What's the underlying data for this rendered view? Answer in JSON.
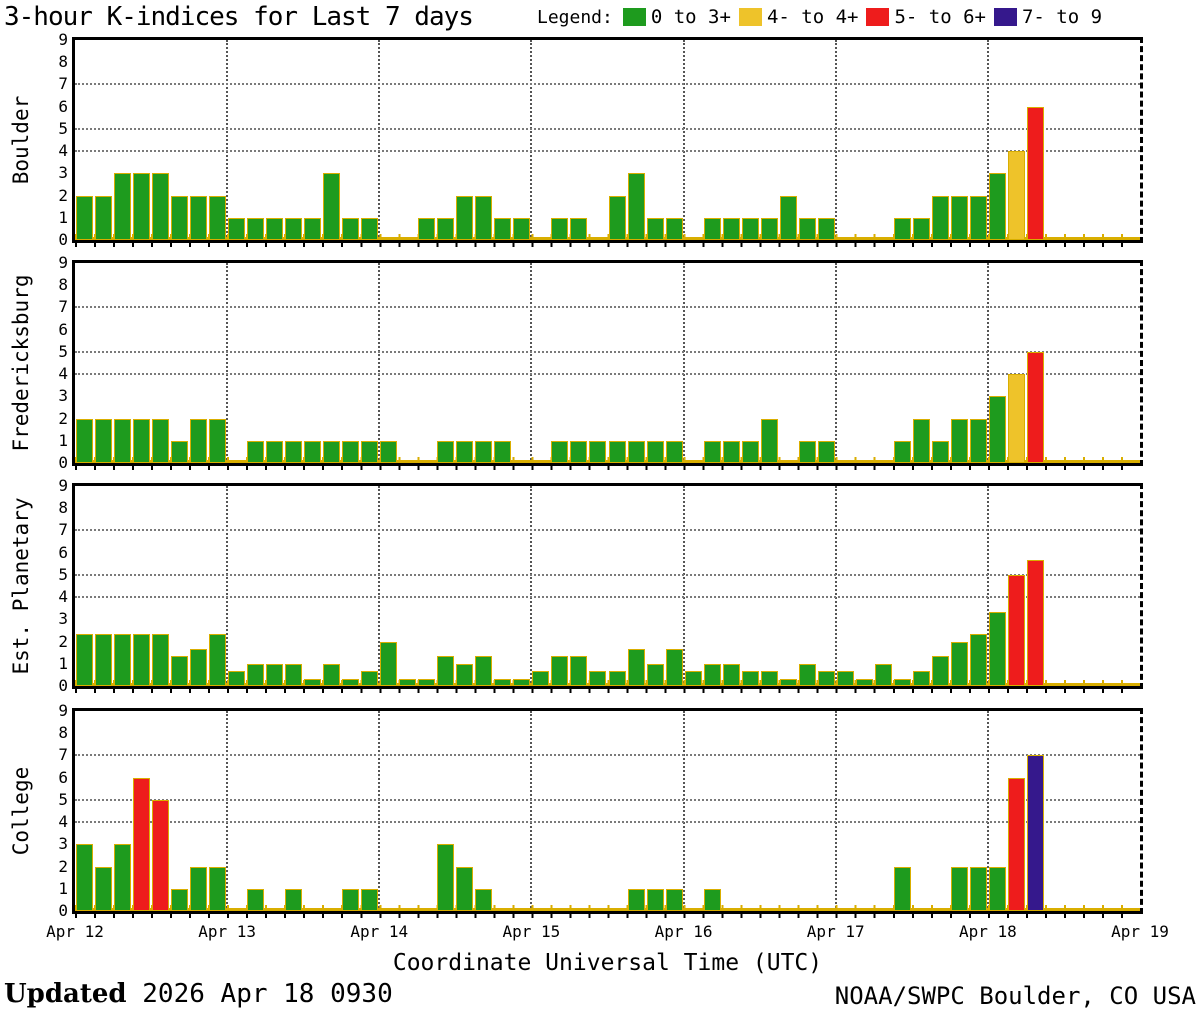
{
  "title": "3-hour K-indices for Last 7 days",
  "legend": {
    "label": "Legend:",
    "items": [
      {
        "label": "0 to 3+",
        "color_key": "green"
      },
      {
        "label": "4- to 4+",
        "color_key": "yellow"
      },
      {
        "label": "5- to 6+",
        "color_key": "red"
      },
      {
        "label": "7- to 9",
        "color_key": "purple"
      }
    ]
  },
  "colors": {
    "green": "#1e9b1e",
    "yellow": "#eec32a",
    "red": "#ee1c1c",
    "purple": "#35188c",
    "bar_outline": "#d9ae00",
    "grid_horizontal": "#7a7a7a",
    "grid_vertical": "#555555",
    "axis": "#000000",
    "background": "#ffffff"
  },
  "x_axis": {
    "title": "Coordinate Universal Time (UTC)",
    "tick_labels": [
      "Apr 12",
      "Apr 13",
      "Apr 14",
      "Apr 15",
      "Apr 16",
      "Apr 17",
      "Apr 18",
      "Apr 19"
    ]
  },
  "y_axis": {
    "min": 0,
    "max": 9,
    "ticks": [
      0,
      1,
      2,
      3,
      4,
      5,
      6,
      7,
      8,
      9
    ],
    "dotted_levels": [
      4,
      5,
      7
    ]
  },
  "footer": {
    "updated_label": "Updated",
    "updated_value": " 2026 Apr 18 0930",
    "credit": "NOAA/SWPC Boulder, CO USA"
  },
  "chart_data": {
    "type": "bar",
    "title": "3-hour K-indices for Last 7 days",
    "bars_per_day": 8,
    "bar_interval_hours": 3,
    "days": [
      "Apr 12",
      "Apr 13",
      "Apr 14",
      "Apr 15",
      "Apr 16",
      "Apr 17",
      "Apr 18"
    ],
    "ylim": [
      0,
      9
    ],
    "color_rule": [
      {
        "max": 3.5,
        "color_key": "green"
      },
      {
        "max": 4.5,
        "color_key": "yellow"
      },
      {
        "max": 6.5,
        "color_key": "red"
      },
      {
        "max": 9.0,
        "color_key": "purple"
      }
    ],
    "panels": [
      {
        "station": "Boulder",
        "k_values": [
          [
            2,
            2,
            3,
            3,
            3,
            2,
            2,
            2
          ],
          [
            1,
            1,
            1,
            1,
            1,
            3,
            1,
            1
          ],
          [
            0,
            0,
            1,
            1,
            2,
            2,
            1,
            1
          ],
          [
            0,
            1,
            1,
            0,
            2,
            3,
            1,
            1
          ],
          [
            0,
            1,
            1,
            1,
            1,
            2,
            1,
            1
          ],
          [
            0,
            0,
            0,
            1,
            1,
            2,
            2,
            2
          ],
          [
            3,
            4,
            6,
            null,
            null,
            null,
            null,
            null
          ]
        ]
      },
      {
        "station": "Fredericksburg",
        "k_values": [
          [
            2,
            2,
            2,
            2,
            2,
            1,
            2,
            2
          ],
          [
            0,
            1,
            1,
            1,
            1,
            1,
            1,
            1
          ],
          [
            1,
            0,
            0,
            1,
            1,
            1,
            1,
            0
          ],
          [
            0,
            1,
            1,
            1,
            1,
            1,
            1,
            1
          ],
          [
            0,
            1,
            1,
            1,
            2,
            0,
            1,
            1
          ],
          [
            0,
            0,
            0,
            1,
            2,
            1,
            2,
            2
          ],
          [
            3,
            4,
            5,
            null,
            null,
            null,
            null,
            null
          ]
        ]
      },
      {
        "station": "Est. Planetary",
        "k_values": [
          [
            2.33,
            2.33,
            2.33,
            2.33,
            2.33,
            1.33,
            1.67,
            2.33
          ],
          [
            0.67,
            1,
            1,
            1,
            0.33,
            1,
            0.33,
            0.67
          ],
          [
            2,
            0.33,
            0.33,
            1.33,
            1,
            1.33,
            0.33,
            0.33
          ],
          [
            0.67,
            1.33,
            1.33,
            0.67,
            0.67,
            1.67,
            1,
            1.67
          ],
          [
            0.67,
            1,
            1,
            0.67,
            0.67,
            0.33,
            1,
            0.67
          ],
          [
            0.67,
            0.33,
            1,
            0.33,
            0.67,
            1.33,
            2,
            2.33
          ],
          [
            3.33,
            5,
            5.67,
            null,
            null,
            null,
            null,
            null
          ]
        ]
      },
      {
        "station": "College",
        "k_values": [
          [
            3,
            2,
            3,
            6,
            5,
            1,
            2,
            2
          ],
          [
            0,
            1,
            0,
            1,
            0,
            0,
            1,
            1
          ],
          [
            0,
            0,
            0,
            3,
            2,
            1,
            0,
            0
          ],
          [
            0,
            0,
            0,
            0,
            0,
            1,
            1,
            1
          ],
          [
            0,
            1,
            0,
            0,
            0,
            0,
            0,
            0
          ],
          [
            0,
            0,
            0,
            2,
            0,
            0,
            2,
            2
          ],
          [
            2,
            6,
            7,
            null,
            null,
            null,
            null,
            null
          ]
        ]
      }
    ]
  }
}
